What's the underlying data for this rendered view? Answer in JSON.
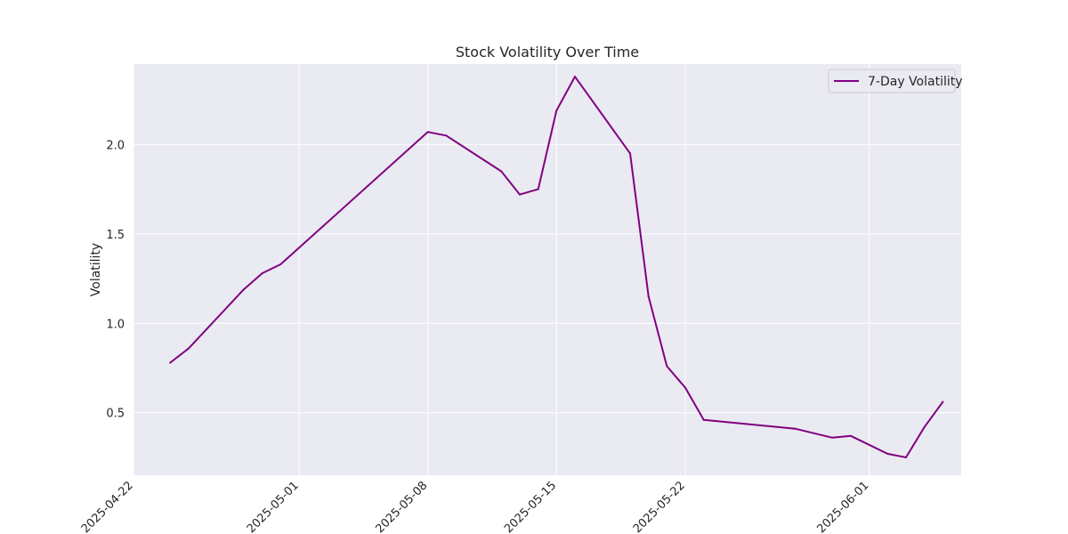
{
  "chart_data": {
    "type": "line",
    "title": "Stock Volatility Over Time",
    "xlabel": "",
    "ylabel": "Volatility",
    "x_type": "date",
    "xlim": [
      "2025-04-22",
      "2025-06-06"
    ],
    "ylim": [
      0.15,
      2.45
    ],
    "x_ticks": [
      "2025-04-22",
      "2025-05-01",
      "2025-05-08",
      "2025-05-15",
      "2025-05-22",
      "2025-06-01"
    ],
    "y_ticks": [
      0.5,
      1.0,
      1.5,
      2.0
    ],
    "y_tick_labels": [
      "0.5",
      "1.0",
      "1.5",
      "2.0"
    ],
    "grid": true,
    "legend_position": "top-right",
    "background_color": "#eaeaf2",
    "grid_color": "#ffffff",
    "series": [
      {
        "name": "7-Day Volatility",
        "color": "#800080",
        "x": [
          "2025-04-24",
          "2025-04-25",
          "2025-04-28",
          "2025-04-29",
          "2025-04-30",
          "2025-05-08",
          "2025-05-09",
          "2025-05-12",
          "2025-05-13",
          "2025-05-14",
          "2025-05-15",
          "2025-05-16",
          "2025-05-19",
          "2025-05-20",
          "2025-05-21",
          "2025-05-22",
          "2025-05-23",
          "2025-05-27",
          "2025-05-28",
          "2025-05-30",
          "2025-05-31",
          "2025-06-02",
          "2025-06-03",
          "2025-06-04",
          "2025-06-05"
        ],
        "y": [
          0.78,
          0.86,
          1.19,
          1.28,
          1.33,
          2.07,
          2.05,
          1.85,
          1.72,
          1.75,
          2.19,
          2.38,
          1.95,
          1.15,
          0.76,
          0.64,
          0.46,
          0.42,
          0.41,
          0.36,
          0.37,
          0.27,
          0.25,
          0.42,
          0.56
        ]
      }
    ]
  }
}
